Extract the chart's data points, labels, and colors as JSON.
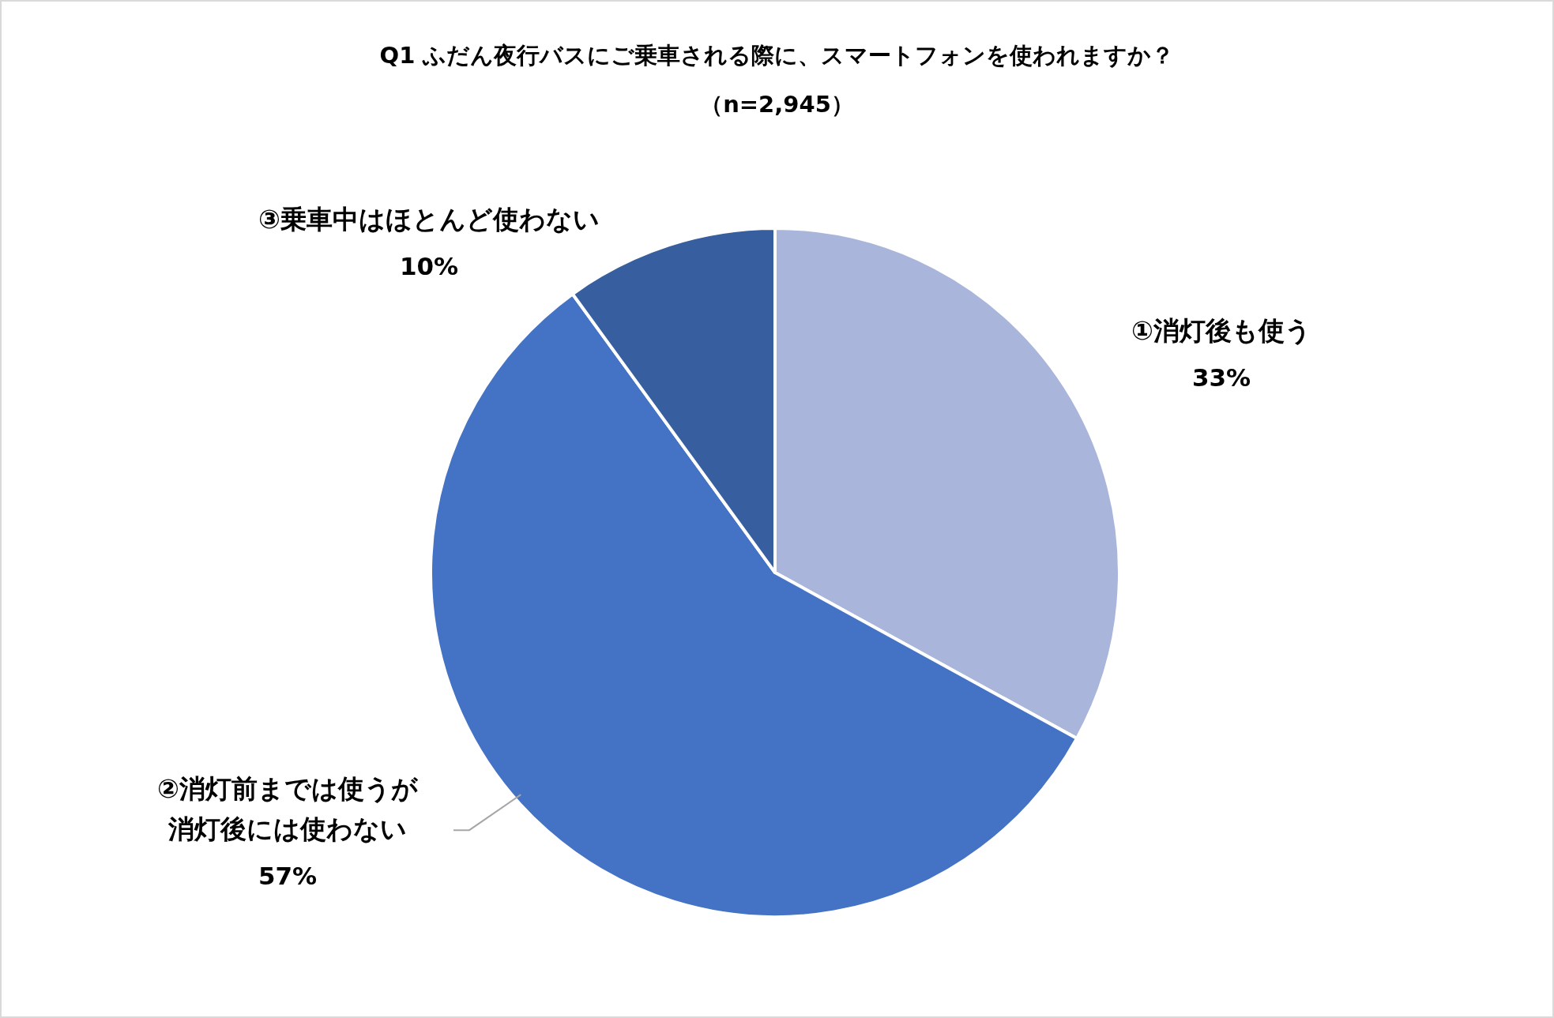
{
  "chart_data": {
    "type": "pie",
    "title": "Q1 ふだん夜行バスにご乗車される際に、スマートフォンを使われますか？",
    "subtitle": "（n=2,945）",
    "categories": [
      "①消灯後も使う",
      "②消灯前までは使うが消灯後には使わない",
      "③乗車中はほとんど使わない"
    ],
    "values": [
      33,
      57,
      10
    ],
    "colors": [
      "#a9b5da",
      "#4472c4",
      "#375e9e"
    ],
    "value_labels": [
      "33%",
      "57%",
      "10%"
    ]
  }
}
